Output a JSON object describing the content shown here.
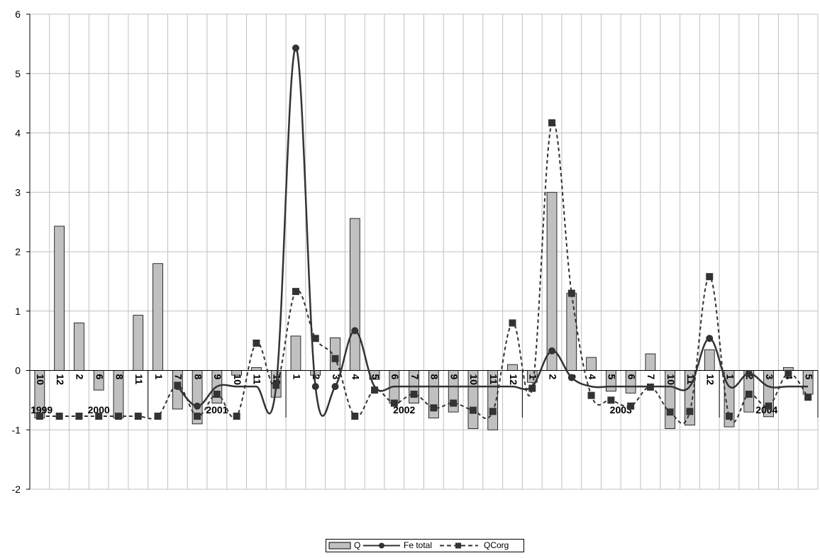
{
  "chart_data": {
    "type": "bar",
    "ylim": [
      -2,
      6
    ],
    "yticks": [
      "-2",
      "-1",
      "0",
      "1",
      "2",
      "3",
      "4",
      "5",
      "6"
    ],
    "grid": true,
    "legend_position": "bottom-center",
    "categories": [
      "10",
      "12",
      "2",
      "6",
      "8",
      "11",
      "1",
      "7",
      "8",
      "9",
      "10",
      "11",
      "12",
      "1",
      "2",
      "3",
      "4",
      "5",
      "6",
      "7",
      "8",
      "9",
      "10",
      "11",
      "12",
      "1",
      "2",
      "3",
      "4",
      "5",
      "6",
      "7",
      "10",
      "11",
      "12",
      "1",
      "2",
      "3",
      "4",
      "5"
    ],
    "year_labels": [
      "1999",
      "2000",
      "2001",
      "2002",
      "2003",
      "2004"
    ],
    "series": [
      {
        "name": "Q",
        "type": "bar",
        "values": [
          -0.8,
          2.43,
          0.8,
          -0.33,
          -0.8,
          0.93,
          1.8,
          -0.65,
          -0.9,
          -0.55,
          -0.08,
          0.05,
          -0.45,
          0.58,
          -0.08,
          0.55,
          2.56,
          -0.15,
          -0.55,
          -0.55,
          -0.8,
          -0.7,
          -0.98,
          -1.0,
          0.1,
          -0.2,
          3.0,
          1.3,
          0.22,
          -0.35,
          -0.38,
          0.28,
          -0.98,
          -0.92,
          0.35,
          -0.95,
          -0.7,
          -0.78,
          0.05,
          -0.4
        ]
      },
      {
        "name": "Fe total",
        "type": "line",
        "values": [
          null,
          null,
          null,
          null,
          null,
          null,
          null,
          -0.27,
          -0.6,
          -0.27,
          -0.27,
          -0.27,
          -0.27,
          5.43,
          -0.27,
          -0.27,
          0.67,
          -0.27,
          -0.27,
          -0.27,
          -0.27,
          -0.27,
          -0.27,
          -0.27,
          -0.27,
          -0.27,
          0.33,
          -0.12,
          -0.27,
          -0.27,
          -0.27,
          -0.27,
          -0.27,
          -0.27,
          0.54,
          -0.27,
          -0.05,
          -0.27,
          -0.27,
          -0.27
        ]
      },
      {
        "name": "QCorg",
        "type": "line",
        "values": [
          -0.77,
          -0.77,
          -0.77,
          -0.77,
          -0.77,
          -0.77,
          -0.77,
          -0.25,
          -0.77,
          -0.4,
          -0.77,
          0.46,
          -0.25,
          1.33,
          0.54,
          0.2,
          -0.77,
          -0.33,
          -0.55,
          -0.4,
          -0.63,
          -0.55,
          -0.67,
          -0.69,
          0.8,
          -0.3,
          4.17,
          1.3,
          -0.42,
          -0.5,
          -0.6,
          -0.28,
          -0.7,
          -0.69,
          1.58,
          -0.77,
          -0.4,
          -0.6,
          -0.05,
          -0.45
        ]
      }
    ]
  },
  "colors": {
    "bar_fill": "#c0c0c0",
    "line": "#333333",
    "grid": "#c0c0c0",
    "axis": "#000000"
  },
  "legend": {
    "q_label": "Q",
    "fe_label": "Fe total",
    "qcorg_label": "QCorg"
  }
}
